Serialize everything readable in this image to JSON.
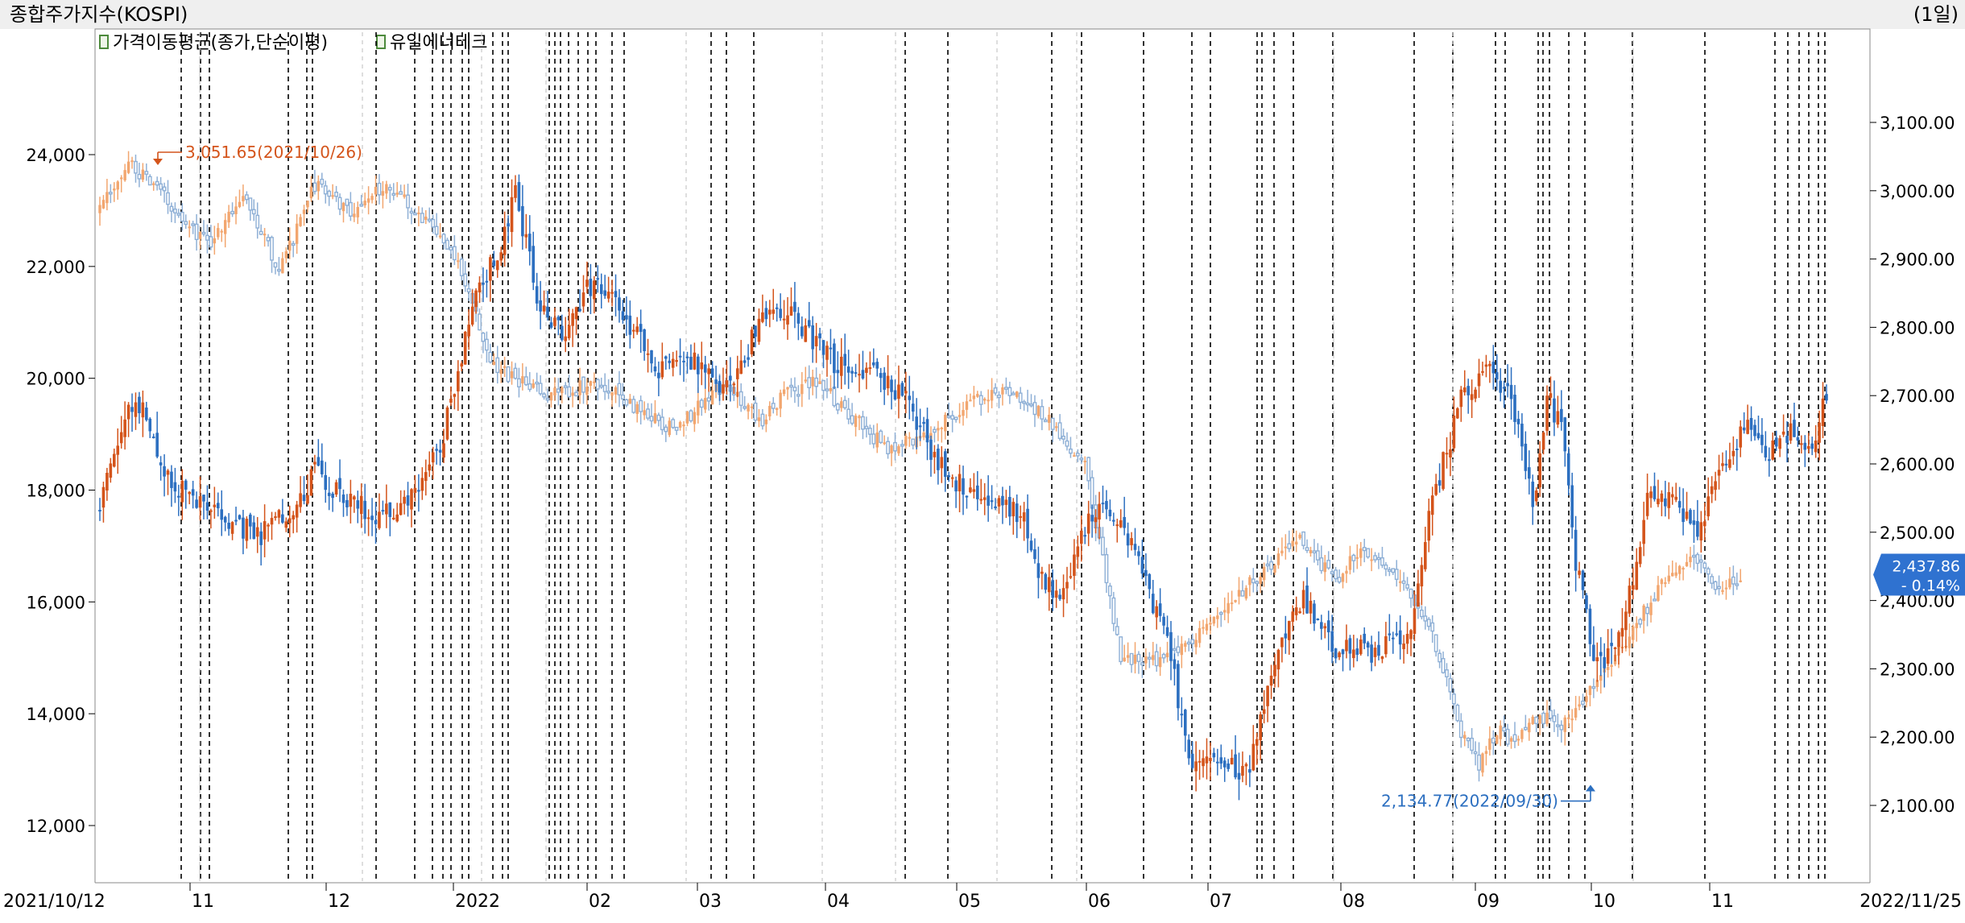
{
  "window": {
    "title": "종합주가지수(KOSPI)",
    "period": "(1일)"
  },
  "legend": {
    "items": [
      "가격이동평균(종가,단순이평)",
      "유일에너테크"
    ]
  },
  "colors": {
    "up": "#d4541b",
    "down": "#2c6fc0",
    "index_up": "#f2a66f",
    "index_down": "#8fb0d6",
    "grid": "#000000",
    "highlight_tag": "#2f72d0"
  },
  "chart_data": {
    "type": "candlestick",
    "x_start_label": "2021/10/12",
    "x_end_label": "2022/11/25",
    "month_ticks": [
      "11",
      "12",
      "2022",
      "02",
      "03",
      "04",
      "05",
      "06",
      "07",
      "08",
      "09",
      "10",
      "11"
    ],
    "left_axis": {
      "ticks": [
        "24,000",
        "22,000",
        "20,000",
        "18,000",
        "16,000",
        "14,000",
        "12,000"
      ],
      "ylim": [
        10000,
        26000
      ]
    },
    "right_axis": {
      "ticks": [
        "3,100.00",
        "3,000.00",
        "2,900.00",
        "2,800.00",
        "2,700.00",
        "2,600.00",
        "2,500.00",
        "2,400.00",
        "2,300.00",
        "2,200.00",
        "2,100.00"
      ],
      "ylim": [
        2000,
        3200
      ]
    },
    "annotations": {
      "high": {
        "label": "3,051.65(2021/10/26)",
        "value": 3051.65,
        "date": "2021/10/26"
      },
      "low": {
        "label": "2,134.77(2022/09/30)",
        "value": 2134.77,
        "date": "2022/09/30"
      },
      "current": {
        "value": "2,437.86",
        "change": "- 0.14%"
      }
    },
    "series": [
      {
        "name": "종합주가지수(KOSPI)",
        "axis": "right",
        "anchors": [
          [
            0,
            2970
          ],
          [
            8,
            3040
          ],
          [
            20,
            2980
          ],
          [
            30,
            2920
          ],
          [
            40,
            3000
          ],
          [
            50,
            2880
          ],
          [
            60,
            3010
          ],
          [
            70,
            2970
          ],
          [
            80,
            3010
          ],
          [
            90,
            2960
          ],
          [
            100,
            2900
          ],
          [
            110,
            2740
          ],
          [
            125,
            2700
          ],
          [
            140,
            2720
          ],
          [
            150,
            2680
          ],
          [
            160,
            2650
          ],
          [
            175,
            2720
          ],
          [
            185,
            2660
          ],
          [
            190,
            2700
          ],
          [
            200,
            2720
          ],
          [
            220,
            2620
          ],
          [
            235,
            2660
          ],
          [
            250,
            2710
          ],
          [
            262,
            2680
          ],
          [
            275,
            2600
          ],
          [
            285,
            2320
          ],
          [
            295,
            2310
          ],
          [
            305,
            2340
          ],
          [
            315,
            2400
          ],
          [
            325,
            2440
          ],
          [
            335,
            2490
          ],
          [
            345,
            2430
          ],
          [
            352,
            2480
          ],
          [
            362,
            2440
          ],
          [
            372,
            2350
          ],
          [
            380,
            2210
          ],
          [
            385,
            2160
          ],
          [
            390,
            2210
          ],
          [
            395,
            2190
          ],
          [
            400,
            2230
          ],
          [
            408,
            2220
          ],
          [
            418,
            2280
          ],
          [
            428,
            2360
          ],
          [
            438,
            2440
          ],
          [
            446,
            2460
          ],
          [
            452,
            2420
          ],
          [
            458,
            2432
          ]
        ],
        "seed": 7
      },
      {
        "name": "유일에너테크",
        "axis": "left",
        "anchors": [
          [
            0,
            17700
          ],
          [
            5,
            18800
          ],
          [
            8,
            19600
          ],
          [
            12,
            19500
          ],
          [
            18,
            18200
          ],
          [
            25,
            17900
          ],
          [
            35,
            17400
          ],
          [
            45,
            17200
          ],
          [
            55,
            17800
          ],
          [
            60,
            18300
          ],
          [
            70,
            17800
          ],
          [
            78,
            17500
          ],
          [
            88,
            17900
          ],
          [
            96,
            19000
          ],
          [
            100,
            20200
          ],
          [
            106,
            21700
          ],
          [
            112,
            22300
          ],
          [
            116,
            23300
          ],
          [
            122,
            21500
          ],
          [
            130,
            20700
          ],
          [
            136,
            21700
          ],
          [
            145,
            21300
          ],
          [
            155,
            20200
          ],
          [
            165,
            20300
          ],
          [
            175,
            19800
          ],
          [
            188,
            21400
          ],
          [
            195,
            21000
          ],
          [
            205,
            20300
          ],
          [
            215,
            20100
          ],
          [
            225,
            19700
          ],
          [
            233,
            18600
          ],
          [
            240,
            18100
          ],
          [
            252,
            17800
          ],
          [
            258,
            17400
          ],
          [
            262,
            16400
          ],
          [
            268,
            16200
          ],
          [
            278,
            17700
          ],
          [
            288,
            17100
          ],
          [
            298,
            15200
          ],
          [
            305,
            13100
          ],
          [
            312,
            13300
          ],
          [
            320,
            12900
          ],
          [
            330,
            15300
          ],
          [
            336,
            16100
          ],
          [
            345,
            15200
          ],
          [
            355,
            15100
          ],
          [
            365,
            15300
          ],
          [
            372,
            17800
          ],
          [
            380,
            19600
          ],
          [
            388,
            20300
          ],
          [
            396,
            19300
          ],
          [
            400,
            17700
          ],
          [
            404,
            19700
          ],
          [
            408,
            19100
          ],
          [
            412,
            16700
          ],
          [
            418,
            14800
          ],
          [
            425,
            15400
          ],
          [
            432,
            17900
          ],
          [
            440,
            17800
          ],
          [
            446,
            17200
          ],
          [
            452,
            18200
          ],
          [
            456,
            18700
          ],
          [
            460,
            19400
          ],
          [
            466,
            18600
          ],
          [
            472,
            19100
          ],
          [
            478,
            18800
          ],
          [
            482,
            19700
          ]
        ],
        "seed": 23
      }
    ]
  }
}
